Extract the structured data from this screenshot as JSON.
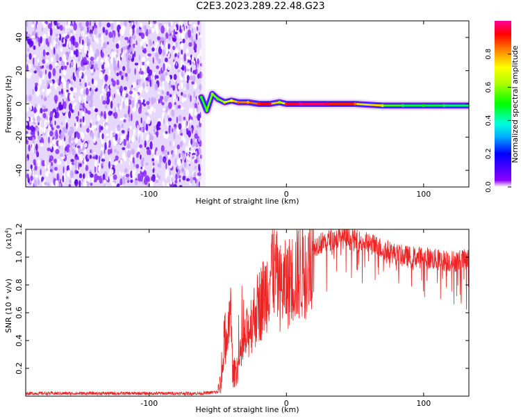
{
  "title": "C2E3.2023.289.22.48.G23",
  "chart_data": [
    {
      "type": "heatmap",
      "xlabel": "Height of straight line (km)",
      "ylabel": "Frequency (Hz)",
      "xlim": [
        -190,
        133
      ],
      "ylim": [
        -50,
        50
      ],
      "xticks": [
        -100,
        0,
        100
      ],
      "yticks": [
        -40,
        -20,
        0,
        20,
        40
      ],
      "grid": false,
      "noise_region_x": [
        -190,
        -62
      ],
      "signal_track": [
        {
          "x": -62,
          "f": 4,
          "a": 0.5
        },
        {
          "x": -58,
          "f": -4,
          "a": 0.55
        },
        {
          "x": -54,
          "f": 6,
          "a": 0.6
        },
        {
          "x": -50,
          "f": 3,
          "a": 0.55
        },
        {
          "x": -45,
          "f": 1,
          "a": 0.65
        },
        {
          "x": -40,
          "f": 2,
          "a": 0.7
        },
        {
          "x": -35,
          "f": 1,
          "a": 0.85
        },
        {
          "x": -28,
          "f": 1,
          "a": 0.8
        },
        {
          "x": -20,
          "f": 0,
          "a": 0.9
        },
        {
          "x": -12,
          "f": 0,
          "a": 0.95
        },
        {
          "x": -5,
          "f": 1,
          "a": 0.6
        },
        {
          "x": 0,
          "f": 0,
          "a": 0.9
        },
        {
          "x": 10,
          "f": 0,
          "a": 1.0
        },
        {
          "x": 30,
          "f": 0,
          "a": 0.95
        },
        {
          "x": 50,
          "f": 0,
          "a": 0.85
        },
        {
          "x": 70,
          "f": -1,
          "a": 0.65
        },
        {
          "x": 85,
          "f": -1,
          "a": 0.45
        },
        {
          "x": 100,
          "f": -1,
          "a": 0.5
        },
        {
          "x": 115,
          "f": -1,
          "a": 0.45
        },
        {
          "x": 133,
          "f": -1,
          "a": 0.45
        }
      ],
      "colorbar": {
        "label": "Normalized spectral amplitude",
        "range": [
          0,
          1
        ],
        "ticks": [
          0.0,
          0.2,
          0.4,
          0.6,
          0.8
        ]
      }
    },
    {
      "type": "line",
      "xlabel": "Height of straight line (km)",
      "ylabel": "SNR (10 * v/v)",
      "y_multiplier": "(x10",
      "y_multiplier_exp": "4",
      "xlim": [
        -190,
        133
      ],
      "ylim": [
        0,
        1.2
      ],
      "xticks": [
        -100,
        0,
        100
      ],
      "yticks": [
        0.2,
        0.4,
        0.6,
        0.8,
        1.0,
        1.2
      ],
      "grid": false,
      "series": [
        {
          "color": "#ee2222",
          "x": [
            -190,
            -100,
            -62,
            -50,
            -47,
            -45,
            -43,
            -41,
            -39,
            -35,
            -30,
            -25,
            -20,
            -15,
            -10,
            -5,
            0,
            5,
            10,
            15,
            20,
            30,
            40,
            50,
            60,
            70,
            80,
            90,
            100,
            110,
            120,
            133
          ],
          "y": [
            0.02,
            0.02,
            0.02,
            0.03,
            0.12,
            0.45,
            0.3,
            0.7,
            0.15,
            0.22,
            0.4,
            0.55,
            0.65,
            0.75,
            0.95,
            0.78,
            0.8,
            0.85,
            0.9,
            0.92,
            1.08,
            1.12,
            1.14,
            1.12,
            1.1,
            1.06,
            1.02,
            1.0,
            1.0,
            0.98,
            0.97,
            0.98
          ]
        }
      ]
    }
  ]
}
